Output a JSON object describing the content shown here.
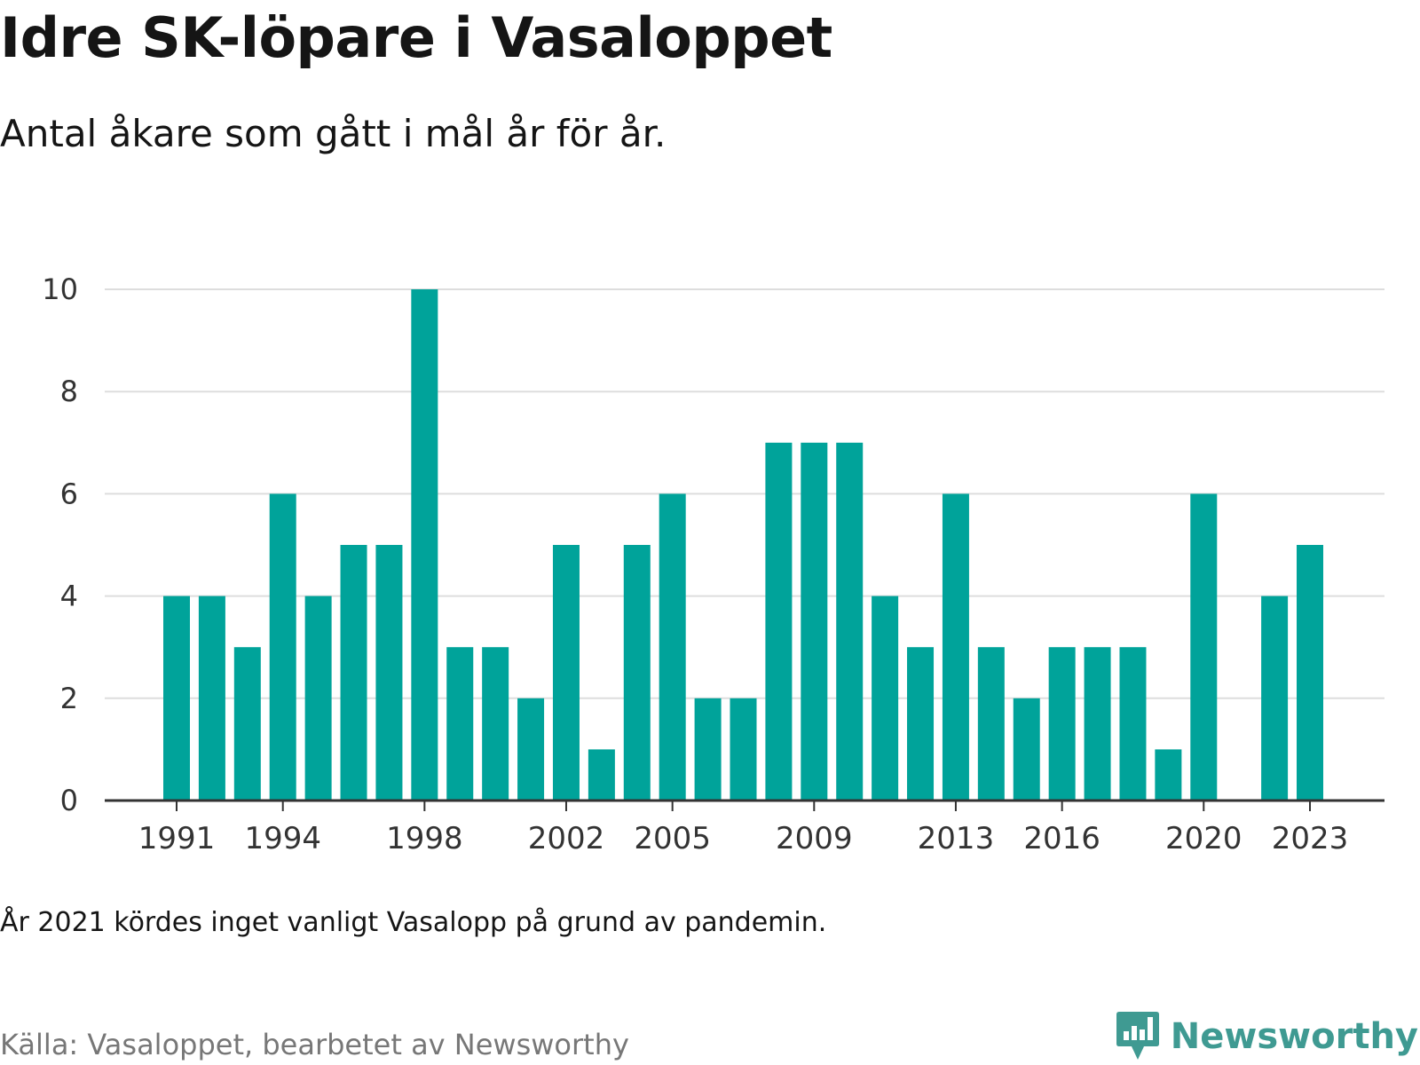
{
  "title": "Idre SK-löpare i Vasaloppet",
  "subtitle": "Antal åkare som gått i mål år för år.",
  "note": "År 2021 kördes inget vanligt Vasalopp på grund av pandemin.",
  "source": "Källa: Vasaloppet, bearbetet av Newsworthy",
  "brand": "Newsworthy",
  "colors": {
    "bar": "#00a39a",
    "grid": "#dddddd",
    "axis": "#333333",
    "brand": "#3f9a92"
  },
  "chart_data": {
    "type": "bar",
    "title": "Idre SK-löpare i Vasaloppet",
    "subtitle": "Antal åkare som gått i mål år för år.",
    "categories": [
      1991,
      1992,
      1993,
      1994,
      1995,
      1996,
      1997,
      1998,
      1999,
      2000,
      2001,
      2002,
      2003,
      2004,
      2005,
      2006,
      2007,
      2008,
      2009,
      2010,
      2011,
      2012,
      2013,
      2014,
      2015,
      2016,
      2017,
      2018,
      2019,
      2020,
      2021,
      2022,
      2023
    ],
    "values": [
      4,
      4,
      3,
      6,
      4,
      5,
      5,
      10,
      3,
      3,
      2,
      5,
      1,
      5,
      6,
      2,
      2,
      7,
      7,
      7,
      4,
      3,
      6,
      3,
      2,
      3,
      3,
      3,
      1,
      6,
      null,
      4,
      5
    ],
    "x_tick_labels": [
      "1991",
      "1994",
      "1998",
      "2002",
      "2005",
      "2009",
      "2013",
      "2016",
      "2020",
      "2023"
    ],
    "y_ticks": [
      0,
      2,
      4,
      6,
      8,
      10
    ],
    "ylim": [
      0,
      10
    ],
    "grid": true,
    "xlabel": "",
    "ylabel": ""
  }
}
